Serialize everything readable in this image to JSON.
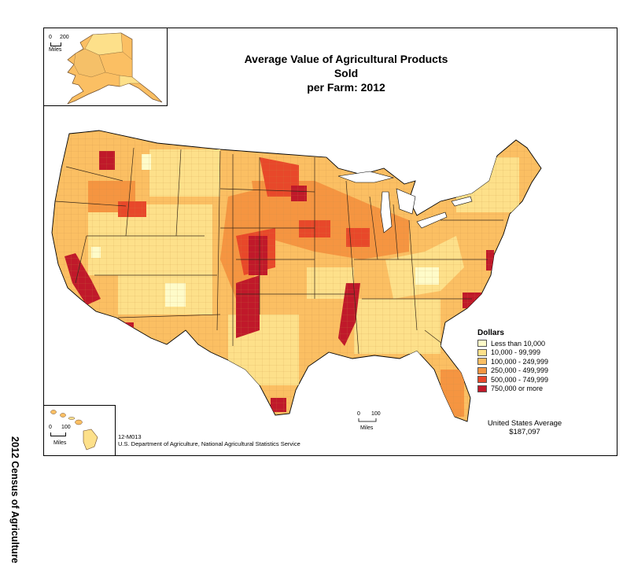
{
  "title": {
    "line1": "Average Value of Agricultural Products Sold",
    "line2": "per Farm:  2012"
  },
  "side_title": "2012 Census of Agriculture",
  "legend": {
    "heading": "Dollars",
    "items": [
      {
        "label": "Less than 10,000",
        "color": "#fefbc9"
      },
      {
        "label": "10,000 - 99,999",
        "color": "#fde08a"
      },
      {
        "label": "100,000 - 249,999",
        "color": "#fbbf63"
      },
      {
        "label": "250,000 - 499,999",
        "color": "#f59541"
      },
      {
        "label": "500,000 - 749,999",
        "color": "#e8482a"
      },
      {
        "label": "750,000 or more",
        "color": "#c0192a"
      }
    ]
  },
  "average": {
    "label": "United States Average",
    "value": "$187,097"
  },
  "scales": {
    "alaska": {
      "zero": "0",
      "max": "200",
      "unit": "Miles"
    },
    "hawaii": {
      "zero": "0",
      "max": "100",
      "unit": "Miles"
    },
    "conus": {
      "zero": "0",
      "max": "100",
      "unit": "Miles"
    }
  },
  "credits": {
    "map_id": "12-M013",
    "agency": "U.S. Department of Agriculture, National Agricultural Statistics Service"
  },
  "colors": {
    "border": "#000000",
    "state_line": "#3a2a1a"
  }
}
